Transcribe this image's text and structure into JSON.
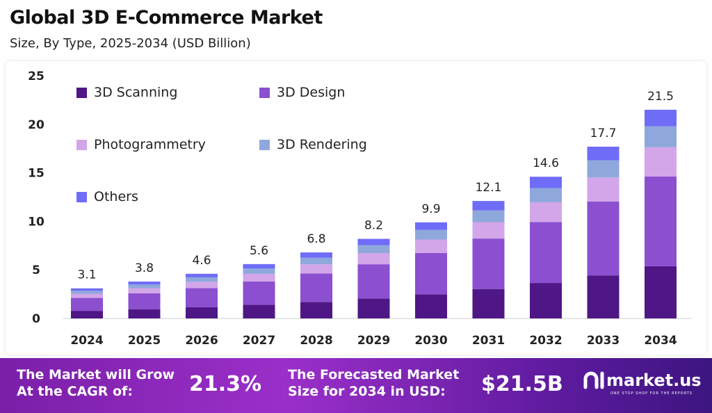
{
  "header": {
    "title": "Global 3D E-Commerce Market",
    "subtitle": "Size, By Type, 2025-2034 (USD Billion)"
  },
  "chart_data": {
    "type": "bar",
    "stacked": true,
    "categories": [
      "2024",
      "2025",
      "2026",
      "2027",
      "2028",
      "2029",
      "2030",
      "2031",
      "2032",
      "2033",
      "2034"
    ],
    "totals": [
      3.1,
      3.8,
      4.6,
      5.6,
      6.8,
      8.2,
      9.9,
      12.1,
      14.6,
      17.7,
      21.5
    ],
    "series": [
      {
        "name": "3D Scanning",
        "color": "#4e1785",
        "values": [
          0.78,
          0.95,
          1.15,
          1.4,
          1.7,
          2.05,
          2.48,
          3.03,
          3.65,
          4.43,
          5.38
        ]
      },
      {
        "name": "3D Design",
        "color": "#8b4fd0",
        "values": [
          1.33,
          1.63,
          1.98,
          2.41,
          2.92,
          3.53,
          4.26,
          5.2,
          6.28,
          7.61,
          9.25
        ]
      },
      {
        "name": "Photogrammetry",
        "color": "#d2a6e8",
        "values": [
          0.43,
          0.53,
          0.64,
          0.78,
          0.95,
          1.15,
          1.39,
          1.69,
          2.04,
          2.48,
          3.01
        ]
      },
      {
        "name": "3D Rendering",
        "color": "#8fa8dc",
        "values": [
          0.31,
          0.38,
          0.46,
          0.56,
          0.68,
          0.82,
          0.99,
          1.21,
          1.46,
          1.77,
          2.15
        ]
      },
      {
        "name": "Others",
        "color": "#6f6cf7",
        "values": [
          0.25,
          0.31,
          0.37,
          0.45,
          0.55,
          0.65,
          0.78,
          0.97,
          1.17,
          1.41,
          1.71
        ]
      }
    ],
    "yticks": [
      "0",
      "5",
      "10",
      "15",
      "20",
      "25"
    ],
    "ylim": [
      0,
      25
    ],
    "grid": false,
    "legend": "top-left"
  },
  "footer": {
    "cagr_label": "The Market will Grow At the CAGR of:",
    "cagr_value": "21.3%",
    "forecast_label": "The Forecasted Market Size for 2034 in USD:",
    "forecast_value": "$21.5B",
    "brand": "market.us",
    "brand_tagline": "ONE STOP SHOP FOR THE REPORTS"
  }
}
